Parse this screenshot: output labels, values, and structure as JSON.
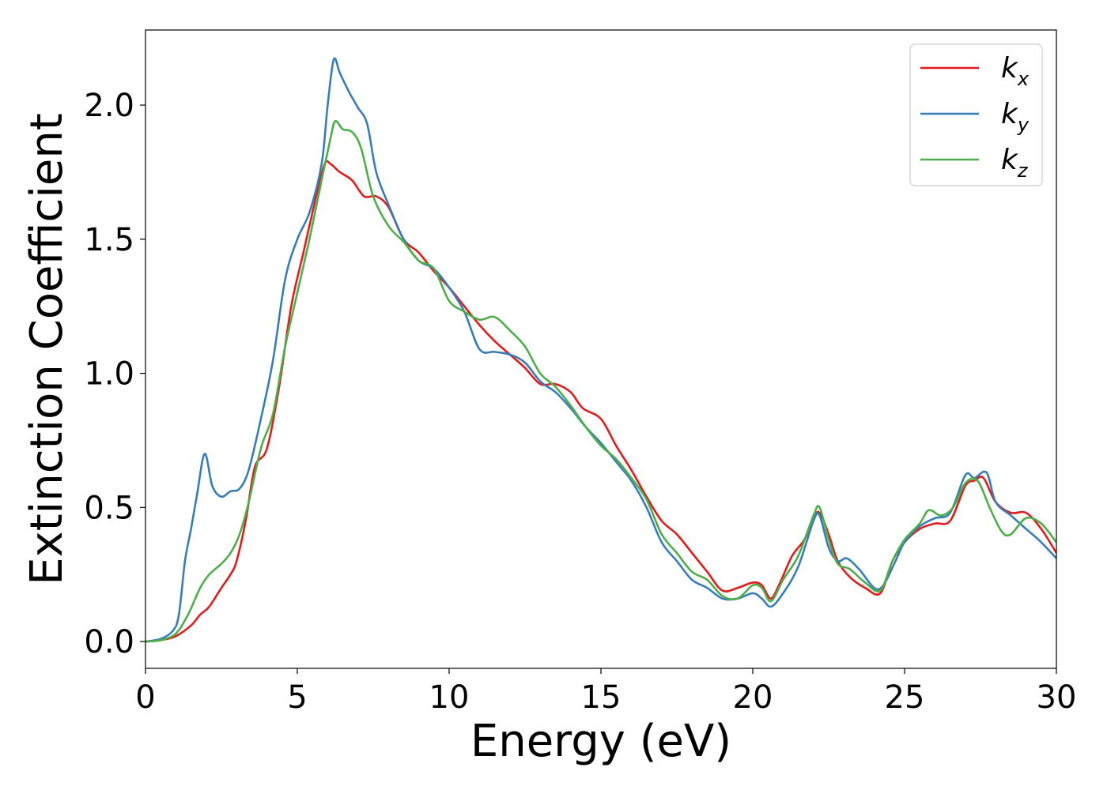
{
  "chart_data": {
    "type": "line",
    "title": "",
    "xlabel": "Energy (eV)",
    "ylabel": "Extinction Coefficient",
    "xlim": [
      0,
      30
    ],
    "ylim": [
      -0.1,
      2.28
    ],
    "xticks": [
      0,
      5,
      10,
      15,
      20,
      25,
      30
    ],
    "xtick_labels": [
      "0",
      "5",
      "10",
      "15",
      "20",
      "25",
      "30"
    ],
    "yticks": [
      0.0,
      0.5,
      1.0,
      1.5,
      2.0
    ],
    "ytick_labels": [
      "0.0",
      "0.5",
      "1.0",
      "1.5",
      "2.0"
    ],
    "grid": false,
    "legend_position": "top-right",
    "series": [
      {
        "name": "k_x",
        "legend_base": "k",
        "legend_sub": "x",
        "color": "#e41a1c",
        "points": [
          [
            0,
            0
          ],
          [
            0.5,
            0.005
          ],
          [
            1.0,
            0.02
          ],
          [
            1.5,
            0.06
          ],
          [
            1.8,
            0.1
          ],
          [
            2.1,
            0.13
          ],
          [
            2.5,
            0.2
          ],
          [
            2.8,
            0.25
          ],
          [
            3.0,
            0.3
          ],
          [
            3.3,
            0.45
          ],
          [
            3.6,
            0.65
          ],
          [
            4.0,
            0.72
          ],
          [
            4.4,
            0.95
          ],
          [
            4.8,
            1.25
          ],
          [
            5.2,
            1.45
          ],
          [
            5.6,
            1.65
          ],
          [
            5.9,
            1.78
          ],
          [
            6.1,
            1.78
          ],
          [
            6.4,
            1.75
          ],
          [
            6.8,
            1.72
          ],
          [
            7.2,
            1.66
          ],
          [
            7.6,
            1.66
          ],
          [
            8.0,
            1.62
          ],
          [
            8.5,
            1.5
          ],
          [
            9.0,
            1.45
          ],
          [
            9.5,
            1.38
          ],
          [
            10.0,
            1.32
          ],
          [
            10.5,
            1.25
          ],
          [
            11.0,
            1.18
          ],
          [
            11.5,
            1.12
          ],
          [
            12.0,
            1.07
          ],
          [
            12.5,
            1.02
          ],
          [
            13.0,
            0.96
          ],
          [
            13.5,
            0.96
          ],
          [
            14.0,
            0.93
          ],
          [
            14.4,
            0.87
          ],
          [
            15.0,
            0.83
          ],
          [
            15.5,
            0.73
          ],
          [
            16.0,
            0.64
          ],
          [
            16.5,
            0.54
          ],
          [
            17.0,
            0.45
          ],
          [
            17.5,
            0.4
          ],
          [
            18.0,
            0.33
          ],
          [
            18.5,
            0.26
          ],
          [
            19.0,
            0.19
          ],
          [
            19.5,
            0.2
          ],
          [
            20.0,
            0.22
          ],
          [
            20.3,
            0.21
          ],
          [
            20.6,
            0.16
          ],
          [
            20.9,
            0.22
          ],
          [
            21.3,
            0.32
          ],
          [
            21.7,
            0.38
          ],
          [
            22.0,
            0.46
          ],
          [
            22.2,
            0.48
          ],
          [
            22.5,
            0.4
          ],
          [
            22.8,
            0.3
          ],
          [
            23.2,
            0.24
          ],
          [
            23.7,
            0.2
          ],
          [
            24.2,
            0.18
          ],
          [
            24.6,
            0.3
          ],
          [
            25.0,
            0.37
          ],
          [
            25.5,
            0.42
          ],
          [
            26.0,
            0.44
          ],
          [
            26.5,
            0.45
          ],
          [
            27.0,
            0.58
          ],
          [
            27.3,
            0.6
          ],
          [
            27.6,
            0.61
          ],
          [
            28.0,
            0.52
          ],
          [
            28.5,
            0.48
          ],
          [
            29.0,
            0.48
          ],
          [
            29.5,
            0.42
          ],
          [
            30.0,
            0.33
          ]
        ]
      },
      {
        "name": "k_y",
        "legend_base": "k",
        "legend_sub": "y",
        "color": "#377eb8",
        "points": [
          [
            0,
            0
          ],
          [
            0.5,
            0.01
          ],
          [
            0.9,
            0.04
          ],
          [
            1.1,
            0.1
          ],
          [
            1.3,
            0.3
          ],
          [
            1.5,
            0.42
          ],
          [
            1.7,
            0.55
          ],
          [
            1.95,
            0.7
          ],
          [
            2.2,
            0.58
          ],
          [
            2.5,
            0.54
          ],
          [
            2.8,
            0.56
          ],
          [
            3.1,
            0.57
          ],
          [
            3.4,
            0.64
          ],
          [
            3.8,
            0.83
          ],
          [
            4.2,
            1.05
          ],
          [
            4.6,
            1.35
          ],
          [
            5.0,
            1.5
          ],
          [
            5.4,
            1.6
          ],
          [
            5.8,
            1.78
          ],
          [
            6.0,
            2.0
          ],
          [
            6.2,
            2.17
          ],
          [
            6.4,
            2.12
          ],
          [
            6.7,
            2.05
          ],
          [
            7.0,
            1.99
          ],
          [
            7.3,
            1.93
          ],
          [
            7.6,
            1.75
          ],
          [
            8.0,
            1.63
          ],
          [
            8.5,
            1.5
          ],
          [
            9.0,
            1.42
          ],
          [
            9.5,
            1.39
          ],
          [
            10.0,
            1.32
          ],
          [
            10.5,
            1.23
          ],
          [
            11.0,
            1.09
          ],
          [
            11.5,
            1.08
          ],
          [
            12.0,
            1.07
          ],
          [
            12.5,
            1.04
          ],
          [
            13.0,
            0.97
          ],
          [
            13.5,
            0.93
          ],
          [
            14.0,
            0.87
          ],
          [
            14.5,
            0.8
          ],
          [
            15.0,
            0.74
          ],
          [
            15.5,
            0.67
          ],
          [
            16.0,
            0.6
          ],
          [
            16.5,
            0.5
          ],
          [
            17.0,
            0.37
          ],
          [
            17.5,
            0.3
          ],
          [
            18.0,
            0.23
          ],
          [
            18.5,
            0.2
          ],
          [
            19.0,
            0.16
          ],
          [
            19.5,
            0.16
          ],
          [
            20.0,
            0.18
          ],
          [
            20.3,
            0.16
          ],
          [
            20.6,
            0.13
          ],
          [
            21.0,
            0.18
          ],
          [
            21.5,
            0.28
          ],
          [
            22.0,
            0.45
          ],
          [
            22.2,
            0.47
          ],
          [
            22.5,
            0.35
          ],
          [
            22.8,
            0.3
          ],
          [
            23.1,
            0.31
          ],
          [
            23.5,
            0.27
          ],
          [
            24.0,
            0.2
          ],
          [
            24.3,
            0.21
          ],
          [
            24.7,
            0.3
          ],
          [
            25.0,
            0.37
          ],
          [
            25.5,
            0.43
          ],
          [
            26.0,
            0.46
          ],
          [
            26.5,
            0.48
          ],
          [
            27.0,
            0.62
          ],
          [
            27.3,
            0.61
          ],
          [
            27.7,
            0.63
          ],
          [
            28.0,
            0.52
          ],
          [
            28.5,
            0.47
          ],
          [
            29.0,
            0.42
          ],
          [
            29.5,
            0.37
          ],
          [
            30.0,
            0.31
          ]
        ]
      },
      {
        "name": "k_z",
        "legend_base": "k",
        "legend_sub": "z",
        "color": "#4daf4a",
        "points": [
          [
            0,
            0
          ],
          [
            0.5,
            0.005
          ],
          [
            1.0,
            0.03
          ],
          [
            1.4,
            0.1
          ],
          [
            1.8,
            0.2
          ],
          [
            2.1,
            0.25
          ],
          [
            2.5,
            0.29
          ],
          [
            2.8,
            0.33
          ],
          [
            3.1,
            0.4
          ],
          [
            3.4,
            0.52
          ],
          [
            3.8,
            0.72
          ],
          [
            4.2,
            0.85
          ],
          [
            4.6,
            1.1
          ],
          [
            5.0,
            1.3
          ],
          [
            5.4,
            1.5
          ],
          [
            5.8,
            1.72
          ],
          [
            6.1,
            1.88
          ],
          [
            6.25,
            1.94
          ],
          [
            6.5,
            1.91
          ],
          [
            6.8,
            1.9
          ],
          [
            7.1,
            1.84
          ],
          [
            7.5,
            1.66
          ],
          [
            8.0,
            1.55
          ],
          [
            8.5,
            1.49
          ],
          [
            9.0,
            1.42
          ],
          [
            9.5,
            1.39
          ],
          [
            10.0,
            1.27
          ],
          [
            10.5,
            1.23
          ],
          [
            11.0,
            1.2
          ],
          [
            11.5,
            1.21
          ],
          [
            12.0,
            1.16
          ],
          [
            12.5,
            1.1
          ],
          [
            13.0,
            1.0
          ],
          [
            13.5,
            0.95
          ],
          [
            14.0,
            0.88
          ],
          [
            14.5,
            0.8
          ],
          [
            15.0,
            0.73
          ],
          [
            15.5,
            0.68
          ],
          [
            16.0,
            0.61
          ],
          [
            16.5,
            0.53
          ],
          [
            17.0,
            0.4
          ],
          [
            17.5,
            0.33
          ],
          [
            18.0,
            0.26
          ],
          [
            18.5,
            0.23
          ],
          [
            19.0,
            0.17
          ],
          [
            19.5,
            0.16
          ],
          [
            20.0,
            0.21
          ],
          [
            20.3,
            0.2
          ],
          [
            20.6,
            0.15
          ],
          [
            21.0,
            0.23
          ],
          [
            21.5,
            0.32
          ],
          [
            22.0,
            0.47
          ],
          [
            22.2,
            0.5
          ],
          [
            22.5,
            0.38
          ],
          [
            22.8,
            0.29
          ],
          [
            23.2,
            0.27
          ],
          [
            23.7,
            0.22
          ],
          [
            24.2,
            0.19
          ],
          [
            24.6,
            0.3
          ],
          [
            25.0,
            0.38
          ],
          [
            25.5,
            0.44
          ],
          [
            25.8,
            0.49
          ],
          [
            26.2,
            0.47
          ],
          [
            26.6,
            0.5
          ],
          [
            27.0,
            0.59
          ],
          [
            27.4,
            0.6
          ],
          [
            27.8,
            0.5
          ],
          [
            28.2,
            0.41
          ],
          [
            28.5,
            0.4
          ],
          [
            29.0,
            0.46
          ],
          [
            29.5,
            0.44
          ],
          [
            30.0,
            0.37
          ]
        ]
      }
    ]
  }
}
